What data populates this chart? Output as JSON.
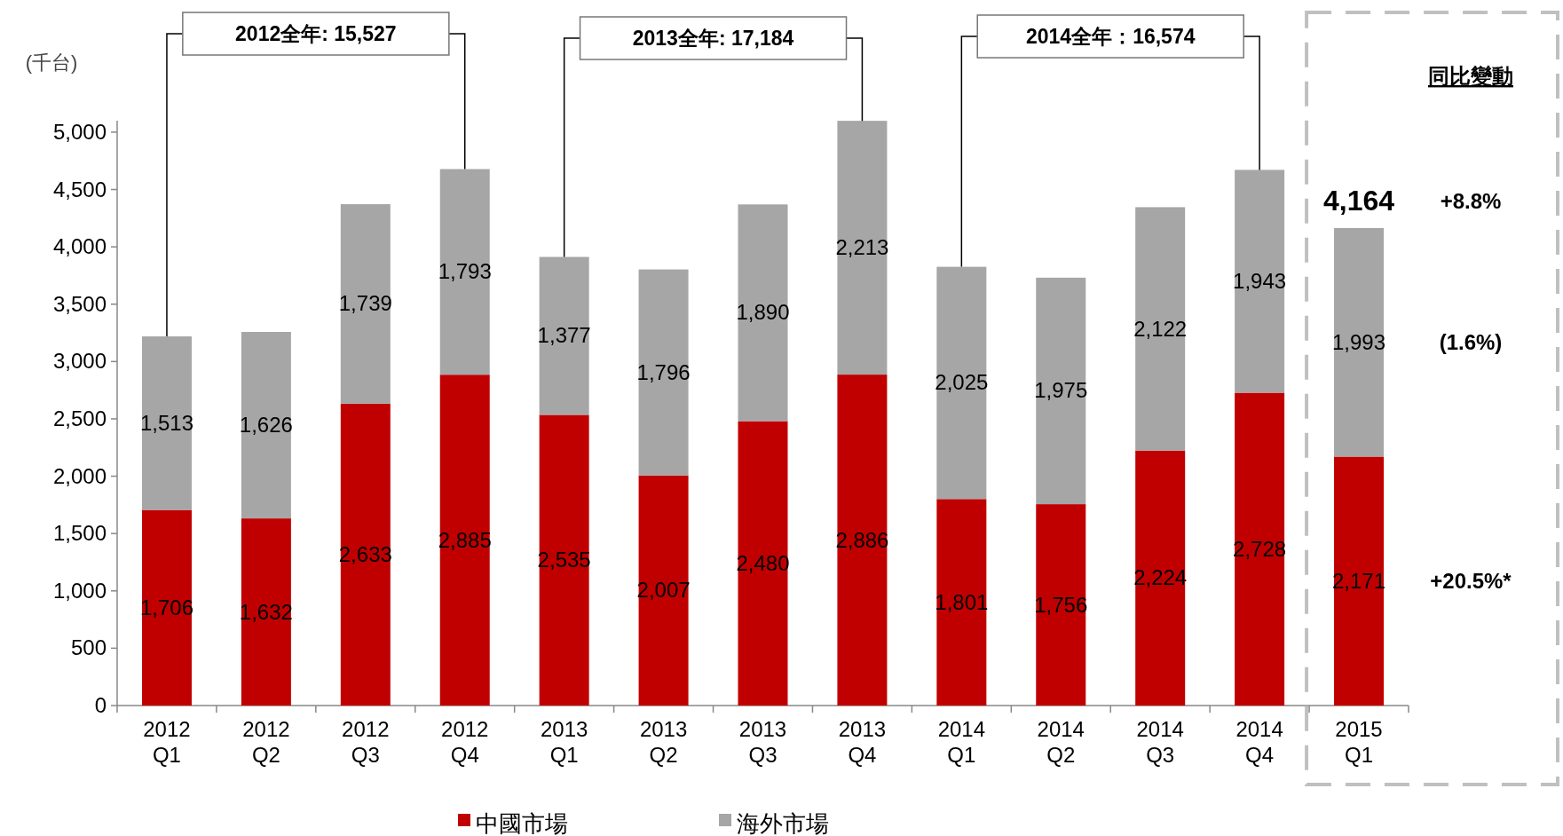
{
  "chart_data": {
    "type": "bar",
    "stacked": true,
    "ylabel": "(千台)",
    "categories": [
      "2012 Q1",
      "2012 Q2",
      "2012 Q3",
      "2012 Q4",
      "2013 Q1",
      "2013 Q2",
      "2013 Q3",
      "2013 Q4",
      "2014 Q1",
      "2014 Q2",
      "2014 Q3",
      "2014 Q4",
      "2015 Q1"
    ],
    "series": [
      {
        "name": "中國市場",
        "color": "#c00000",
        "values": [
          1706,
          1632,
          2633,
          2885,
          2535,
          2007,
          2480,
          2886,
          1801,
          1756,
          2224,
          2728,
          2171
        ],
        "value_labels": [
          "1,706",
          "1,632",
          "2,633",
          "2,885",
          "2,535",
          "2,007",
          "2,480",
          "2,886",
          "1,801",
          "1,756",
          "2,224",
          "2,728",
          "2,171"
        ]
      },
      {
        "name": "海外市場",
        "color": "#a6a6a6",
        "values": [
          1513,
          1626,
          1739,
          1793,
          1377,
          1796,
          1890,
          2213,
          2025,
          1975,
          2122,
          1943,
          1993
        ],
        "value_labels": [
          "1,513",
          "1,626",
          "1,739",
          "1,793",
          "1,377",
          "1,796",
          "1,890",
          "2,213",
          "2,025",
          "1,975",
          "2,122",
          "1,943",
          "1,993"
        ]
      }
    ],
    "ylim": [
      0,
      5100
    ],
    "yticks": [
      {
        "value": 0,
        "label": "0"
      },
      {
        "value": 500,
        "label": "500"
      },
      {
        "value": 1000,
        "label": "1,000"
      },
      {
        "value": 1500,
        "label": "1,500"
      },
      {
        "value": 2000,
        "label": "2,000"
      },
      {
        "value": 2500,
        "label": "2,500"
      },
      {
        "value": 3000,
        "label": "3,000"
      },
      {
        "value": 3500,
        "label": "3,500"
      },
      {
        "value": 4000,
        "label": "4,000"
      },
      {
        "value": 4500,
        "label": "4,500"
      },
      {
        "value": 5000,
        "label": "5,000"
      }
    ],
    "totals": [
      null,
      null,
      null,
      null,
      null,
      null,
      null,
      null,
      null,
      null,
      null,
      null,
      "4,164"
    ],
    "annotations": [
      "2012全年: 15,527",
      "2013全年: 17,184",
      "2014全年：16,574",
      "同比變動",
      "+8.8%",
      "(1.6%)",
      "+20.5%*"
    ],
    "grid": false,
    "legend": "bottom"
  }
}
